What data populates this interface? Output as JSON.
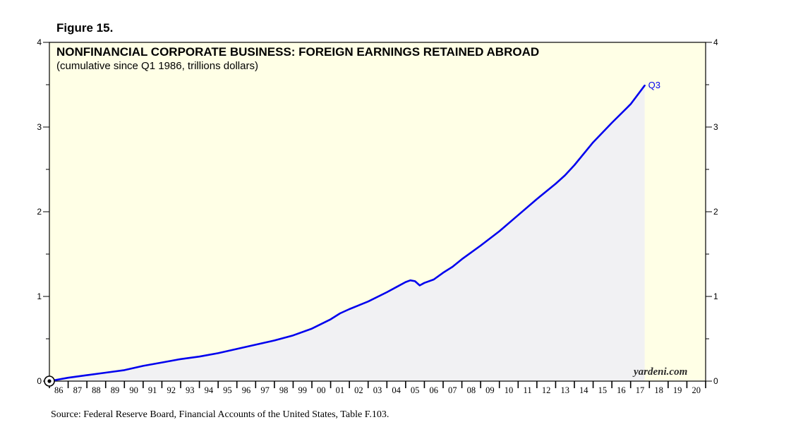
{
  "figure_label": "Figure 15.",
  "source": "Source: Federal Reserve Board, Financial Accounts of the United States, Table F.103.",
  "watermark": "yardeni.com",
  "colors": {
    "line": "#0000ee",
    "plot_background": "#ffffe6",
    "area_fill": "#f1f1f3",
    "frame": "#000000"
  },
  "chart_data": {
    "type": "area",
    "title": "NONFINANCIAL CORPORATE BUSINESS: FOREIGN EARNINGS RETAINED ABROAD",
    "subtitle": "(cumulative since Q1 1986, trillions dollars)",
    "xlabel": "",
    "ylabel": "",
    "xlim": [
      1986,
      2021
    ],
    "ylim": [
      0,
      4
    ],
    "y_ticks": [
      0,
      1,
      2,
      3,
      4
    ],
    "y_axis_sides": [
      "left",
      "right"
    ],
    "x_tick_labels": [
      "86",
      "87",
      "88",
      "89",
      "90",
      "91",
      "92",
      "93",
      "94",
      "95",
      "96",
      "97",
      "98",
      "99",
      "00",
      "01",
      "02",
      "03",
      "04",
      "05",
      "06",
      "07",
      "08",
      "09",
      "10",
      "11",
      "12",
      "13",
      "14",
      "15",
      "16",
      "17",
      "18",
      "19",
      "20"
    ],
    "end_label": "Q3",
    "grid": false,
    "series": [
      {
        "x": [
          1986.0,
          1987.0,
          1988.0,
          1989.0,
          1990.0,
          1991.0,
          1992.0,
          1993.0,
          1994.0,
          1995.0,
          1996.0,
          1997.0,
          1998.0,
          1999.0,
          2000.0,
          2001.0,
          2001.5,
          2002.0,
          2003.0,
          2004.0,
          2004.5,
          2005.0,
          2005.25,
          2005.5,
          2005.75,
          2006.0,
          2006.5,
          2007.0,
          2007.5,
          2008.0,
          2008.5,
          2009.0,
          2010.0,
          2011.0,
          2012.0,
          2013.0,
          2013.5,
          2014.0,
          2015.0,
          2016.0,
          2017.0,
          2017.75
        ],
        "values": [
          0.0,
          0.04,
          0.07,
          0.1,
          0.13,
          0.18,
          0.22,
          0.26,
          0.29,
          0.33,
          0.38,
          0.43,
          0.48,
          0.54,
          0.62,
          0.73,
          0.8,
          0.85,
          0.94,
          1.05,
          1.11,
          1.17,
          1.19,
          1.18,
          1.13,
          1.16,
          1.2,
          1.28,
          1.35,
          1.44,
          1.52,
          1.6,
          1.77,
          1.96,
          2.15,
          2.33,
          2.43,
          2.55,
          2.82,
          3.05,
          3.27,
          3.49
        ]
      }
    ]
  }
}
